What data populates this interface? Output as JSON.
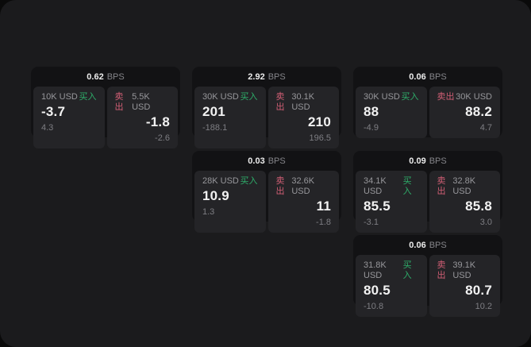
{
  "labels": {
    "bps": "BPS",
    "buy": "买入",
    "sell": "卖出"
  },
  "colors": {
    "page_background": "#0a0a0a",
    "window_background": "#1b1b1d",
    "card_background": "#121214",
    "tile_background": "#242427",
    "buy_green": "#2eae6a",
    "sell_rose": "#d25f75",
    "primary_text": "#f2f2f2",
    "muted_text": "#97979b"
  },
  "cards": [
    {
      "bps": "0.62",
      "buy": {
        "size": "10K USD",
        "main": "-3.7",
        "sub": "4.3"
      },
      "sell": {
        "size": "5.5K USD",
        "main": "-1.8",
        "sub": "-2.6"
      }
    },
    {
      "bps": "2.92",
      "buy": {
        "size": "30K USD",
        "main": "201",
        "sub": "-188.1"
      },
      "sell": {
        "size": "30.1K USD",
        "main": "210",
        "sub": "196.5"
      }
    },
    {
      "bps": "0.06",
      "buy": {
        "size": "30K USD",
        "main": "88",
        "sub": "-4.9"
      },
      "sell": {
        "size": "30K USD",
        "main": "88.2",
        "sub": "4.7"
      }
    },
    {
      "bps": "0.03",
      "buy": {
        "size": "28K USD",
        "main": "10.9",
        "sub": "1.3"
      },
      "sell": {
        "size": "32.6K USD",
        "main": "11",
        "sub": "-1.8"
      }
    },
    {
      "bps": "0.09",
      "buy": {
        "size": "34.1K USD",
        "main": "85.5",
        "sub": "-3.1"
      },
      "sell": {
        "size": "32.8K USD",
        "main": "85.8",
        "sub": "3.0"
      }
    },
    {
      "bps": "0.06",
      "buy": {
        "size": "31.8K USD",
        "main": "80.5",
        "sub": "-10.8"
      },
      "sell": {
        "size": "39.1K USD",
        "main": "80.7",
        "sub": "10.2"
      }
    }
  ]
}
